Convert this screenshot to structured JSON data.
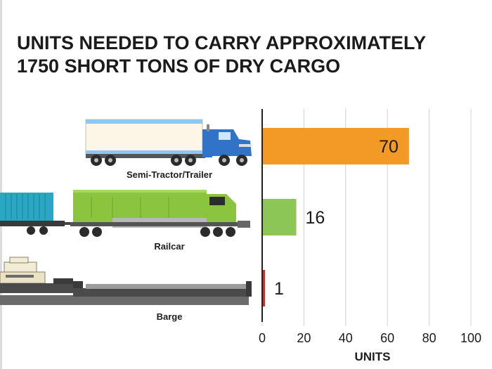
{
  "title_lines": [
    "UNITS NEEDED TO CARRY APPROXIMATELY",
    "1750 SHORT TONS OF DRY CARGO"
  ],
  "chart_data": {
    "type": "bar",
    "orientation": "horizontal",
    "title": "UNITS NEEDED TO CARRY APPROXIMATELY 1750 SHORT TONS OF DRY CARGO",
    "categories": [
      "Semi-Tractor/Trailer",
      "Railcar",
      "Barge"
    ],
    "values": [
      70,
      16,
      1
    ],
    "bar_colors": [
      "#f39a26",
      "#8cc657",
      "#d7262e"
    ],
    "xlabel": "UNITS",
    "ylabel": "",
    "xlim": [
      0,
      100
    ],
    "xticks": [
      0,
      20,
      40,
      60,
      80,
      100
    ],
    "grid": true,
    "legend": "none"
  },
  "colors": {
    "grid": "#d0d0d0",
    "axis": "#222222",
    "truck_cab": "#2f74c8",
    "truck_trailer_stripe": "#8ec6f0",
    "locomotive": "#8bc53f",
    "container": "#2aa7c4",
    "barge_hull": "#4a4a4a"
  },
  "icons": [
    "semi-truck-icon",
    "locomotive-icon",
    "barge-icon"
  ]
}
